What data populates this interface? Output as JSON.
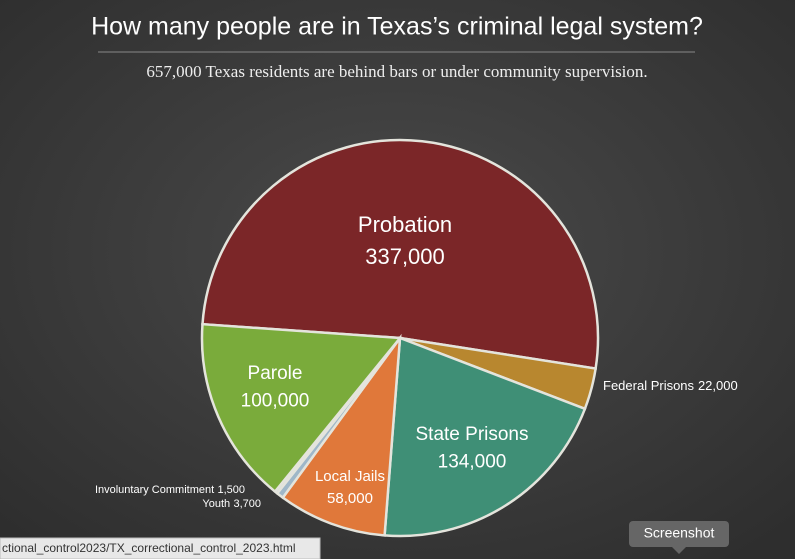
{
  "chart_data": {
    "type": "pie",
    "title": "How many people are in Texas’s criminal legal system?",
    "subtitle": "657,000 Texas residents are behind bars or under community supervision.",
    "categories": [
      "Probation",
      "Federal Prisons",
      "State Prisons",
      "Local Jails",
      "Youth",
      "Involuntary Commitment",
      "Parole"
    ],
    "values": [
      337000,
      22000,
      134000,
      58000,
      3700,
      1500,
      100000
    ],
    "value_labels": [
      "337,000",
      "22,000",
      "134,000",
      "58,000",
      "3,700",
      "1,500",
      "100,000"
    ],
    "colors": [
      "#7b2628",
      "#b8872f",
      "#3f8f76",
      "#e0783a",
      "#9fb7c8",
      "#c9d7df",
      "#7aab3b"
    ]
  },
  "browser": {
    "status_url": "ctional_control2023/TX_correctional_control_2023.html",
    "tooltip": "Screenshot"
  }
}
